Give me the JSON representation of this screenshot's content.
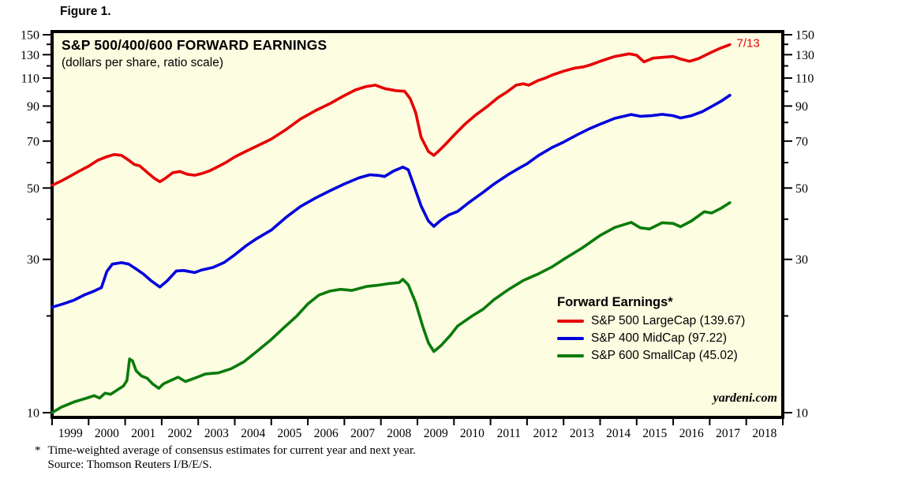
{
  "figure_label": "Figure 1.",
  "chart": {
    "title": "S&P 500/400/600 FORWARD EARNINGS",
    "subtitle": "(dollars per share, ratio scale)",
    "watermark": "yardeni.com",
    "legend": {
      "title": "Forward Earnings*",
      "items": [
        {
          "label": "S&P 500 LargeCap (139.67)",
          "color": "#e60000"
        },
        {
          "label": "S&P 400 MidCap (97.22)",
          "color": "#0000dd"
        },
        {
          "label": "S&P 600 SmallCap (45.02)",
          "color": "#0b7b0b"
        }
      ]
    }
  },
  "colors": {
    "page_bg": "#ffffff",
    "plot_bg": "#fdfde2",
    "frame": "#000000",
    "text": "#000000"
  },
  "footnote": {
    "marker": "*",
    "line1": "Time-weighted average of consensus estimates for current year and next year.",
    "line2": "Source: Thomson Reuters I/B/E/S."
  },
  "chart_data": {
    "type": "line",
    "scale_y": "log",
    "title": "S&P 500/400/600 FORWARD EARNINGS",
    "subtitle": "(dollars per share, ratio scale)",
    "ylabel": "dollars per share (ratio scale)",
    "ylim": [
      10,
      150
    ],
    "x_range": [
      1999,
      2019
    ],
    "yticks_labeled": [
      150,
      130,
      110,
      90,
      70,
      50,
      30,
      10
    ],
    "yticks_minor": [
      140,
      120,
      100,
      80,
      60,
      40,
      20
    ],
    "x_year_labels": [
      1999,
      2000,
      2001,
      2002,
      2003,
      2004,
      2005,
      2006,
      2007,
      2008,
      2009,
      2010,
      2011,
      2012,
      2013,
      2014,
      2015,
      2016,
      2017,
      2018
    ],
    "grid": false,
    "legend_position": "inside-right",
    "annotation": {
      "text": "7/13",
      "year": 2017.65,
      "value": 139.67,
      "color": "#e60000"
    },
    "series": [
      {
        "id": "sp500-largecap",
        "name": "S&P 500 LargeCap",
        "latest": 139.67,
        "color": "#e60000",
        "points": [
          [
            1999.0,
            51.0
          ],
          [
            1999.25,
            52.6
          ],
          [
            1999.5,
            54.5
          ],
          [
            1999.75,
            56.5
          ],
          [
            2000.0,
            58.5
          ],
          [
            2000.25,
            61.0
          ],
          [
            2000.5,
            62.6
          ],
          [
            2000.7,
            63.6
          ],
          [
            2000.9,
            63.2
          ],
          [
            2001.1,
            61.0
          ],
          [
            2001.25,
            59.2
          ],
          [
            2001.4,
            58.6
          ],
          [
            2001.6,
            56.0
          ],
          [
            2001.8,
            53.6
          ],
          [
            2001.95,
            52.3
          ],
          [
            2002.1,
            53.6
          ],
          [
            2002.3,
            55.8
          ],
          [
            2002.5,
            56.3
          ],
          [
            2002.7,
            55.2
          ],
          [
            2002.9,
            54.8
          ],
          [
            2003.1,
            55.5
          ],
          [
            2003.3,
            56.5
          ],
          [
            2003.5,
            58.0
          ],
          [
            2003.75,
            60.0
          ],
          [
            2004.0,
            62.5
          ],
          [
            2004.3,
            65.0
          ],
          [
            2004.6,
            67.5
          ],
          [
            2005.0,
            71.0
          ],
          [
            2005.4,
            76.0
          ],
          [
            2005.8,
            82.0
          ],
          [
            2006.2,
            87.0
          ],
          [
            2006.6,
            91.5
          ],
          [
            2007.0,
            97.0
          ],
          [
            2007.3,
            101.0
          ],
          [
            2007.6,
            103.5
          ],
          [
            2007.85,
            104.5
          ],
          [
            2008.1,
            102.0
          ],
          [
            2008.4,
            100.5
          ],
          [
            2008.65,
            100.0
          ],
          [
            2008.8,
            95.0
          ],
          [
            2008.95,
            86.0
          ],
          [
            2009.1,
            72.0
          ],
          [
            2009.3,
            65.0
          ],
          [
            2009.45,
            63.2
          ],
          [
            2009.6,
            65.5
          ],
          [
            2009.8,
            69.0
          ],
          [
            2010.0,
            73.0
          ],
          [
            2010.3,
            79.0
          ],
          [
            2010.6,
            84.5
          ],
          [
            2010.9,
            89.5
          ],
          [
            2011.2,
            95.5
          ],
          [
            2011.45,
            99.5
          ],
          [
            2011.7,
            104.5
          ],
          [
            2011.9,
            105.5
          ],
          [
            2012.05,
            104.5
          ],
          [
            2012.3,
            108.0
          ],
          [
            2012.5,
            110.0
          ],
          [
            2012.7,
            112.5
          ],
          [
            2013.0,
            115.5
          ],
          [
            2013.3,
            118.0
          ],
          [
            2013.55,
            119.2
          ],
          [
            2013.75,
            121.0
          ],
          [
            2014.0,
            124.0
          ],
          [
            2014.4,
            128.3
          ],
          [
            2014.8,
            130.8
          ],
          [
            2015.0,
            129.5
          ],
          [
            2015.2,
            123.5
          ],
          [
            2015.45,
            126.8
          ],
          [
            2015.7,
            127.5
          ],
          [
            2016.0,
            128.3
          ],
          [
            2016.2,
            126.0
          ],
          [
            2016.45,
            124.0
          ],
          [
            2016.7,
            126.5
          ],
          [
            2017.0,
            131.5
          ],
          [
            2017.3,
            136.3
          ],
          [
            2017.55,
            139.67
          ]
        ]
      },
      {
        "id": "sp400-midcap",
        "name": "S&P 400 MidCap",
        "latest": 97.22,
        "color": "#0000dd",
        "points": [
          [
            1999.0,
            21.3
          ],
          [
            1999.3,
            21.8
          ],
          [
            1999.6,
            22.4
          ],
          [
            1999.9,
            23.3
          ],
          [
            2000.15,
            23.9
          ],
          [
            2000.35,
            24.5
          ],
          [
            2000.5,
            27.5
          ],
          [
            2000.65,
            29.0
          ],
          [
            2000.9,
            29.3
          ],
          [
            2001.1,
            29.0
          ],
          [
            2001.3,
            28.0
          ],
          [
            2001.5,
            27.0
          ],
          [
            2001.7,
            25.8
          ],
          [
            2001.95,
            24.6
          ],
          [
            2002.15,
            25.7
          ],
          [
            2002.4,
            27.6
          ],
          [
            2002.6,
            27.7
          ],
          [
            2002.9,
            27.3
          ],
          [
            2003.1,
            27.8
          ],
          [
            2003.4,
            28.3
          ],
          [
            2003.7,
            29.3
          ],
          [
            2004.0,
            31.0
          ],
          [
            2004.3,
            33.0
          ],
          [
            2004.6,
            34.8
          ],
          [
            2005.0,
            37.0
          ],
          [
            2005.4,
            40.5
          ],
          [
            2005.8,
            43.8
          ],
          [
            2006.2,
            46.5
          ],
          [
            2006.6,
            49.0
          ],
          [
            2007.0,
            51.5
          ],
          [
            2007.4,
            53.8
          ],
          [
            2007.7,
            55.0
          ],
          [
            2007.95,
            54.7
          ],
          [
            2008.1,
            54.3
          ],
          [
            2008.35,
            56.5
          ],
          [
            2008.6,
            58.1
          ],
          [
            2008.75,
            57.0
          ],
          [
            2008.9,
            51.0
          ],
          [
            2009.1,
            44.0
          ],
          [
            2009.3,
            39.5
          ],
          [
            2009.45,
            38.0
          ],
          [
            2009.65,
            39.8
          ],
          [
            2009.85,
            41.2
          ],
          [
            2010.1,
            42.3
          ],
          [
            2010.4,
            45.0
          ],
          [
            2010.8,
            48.5
          ],
          [
            2011.1,
            51.5
          ],
          [
            2011.5,
            55.2
          ],
          [
            2011.8,
            57.8
          ],
          [
            2012.0,
            59.5
          ],
          [
            2012.3,
            63.0
          ],
          [
            2012.7,
            67.0
          ],
          [
            2013.0,
            69.5
          ],
          [
            2013.4,
            73.5
          ],
          [
            2013.7,
            76.4
          ],
          [
            2014.0,
            79.0
          ],
          [
            2014.4,
            82.4
          ],
          [
            2014.85,
            84.7
          ],
          [
            2015.1,
            83.6
          ],
          [
            2015.4,
            84.0
          ],
          [
            2015.7,
            84.8
          ],
          [
            2016.0,
            84.0
          ],
          [
            2016.2,
            82.6
          ],
          [
            2016.5,
            84.0
          ],
          [
            2016.8,
            86.5
          ],
          [
            2017.0,
            89.0
          ],
          [
            2017.3,
            93.0
          ],
          [
            2017.55,
            97.22
          ]
        ]
      },
      {
        "id": "sp600-smallcap",
        "name": "S&P 600 SmallCap",
        "latest": 45.02,
        "color": "#0b7b0b",
        "points": [
          [
            1999.0,
            10.0
          ],
          [
            1999.25,
            10.4
          ],
          [
            1999.6,
            10.8
          ],
          [
            1999.95,
            11.1
          ],
          [
            2000.15,
            11.3
          ],
          [
            2000.3,
            11.1
          ],
          [
            2000.45,
            11.5
          ],
          [
            2000.6,
            11.4
          ],
          [
            2000.8,
            11.8
          ],
          [
            2000.95,
            12.1
          ],
          [
            2001.05,
            12.6
          ],
          [
            2001.12,
            14.7
          ],
          [
            2001.2,
            14.5
          ],
          [
            2001.3,
            13.5
          ],
          [
            2001.45,
            13.0
          ],
          [
            2001.6,
            12.8
          ],
          [
            2001.75,
            12.3
          ],
          [
            2001.92,
            11.9
          ],
          [
            2002.05,
            12.3
          ],
          [
            2002.25,
            12.6
          ],
          [
            2002.45,
            12.9
          ],
          [
            2002.65,
            12.5
          ],
          [
            2002.9,
            12.8
          ],
          [
            2003.2,
            13.2
          ],
          [
            2003.55,
            13.3
          ],
          [
            2003.9,
            13.7
          ],
          [
            2004.25,
            14.4
          ],
          [
            2004.6,
            15.5
          ],
          [
            2005.0,
            16.9
          ],
          [
            2005.35,
            18.4
          ],
          [
            2005.7,
            20.0
          ],
          [
            2006.0,
            21.8
          ],
          [
            2006.3,
            23.2
          ],
          [
            2006.6,
            23.9
          ],
          [
            2006.9,
            24.2
          ],
          [
            2007.2,
            24.0
          ],
          [
            2007.6,
            24.7
          ],
          [
            2007.9,
            24.9
          ],
          [
            2008.2,
            25.2
          ],
          [
            2008.5,
            25.4
          ],
          [
            2008.6,
            26.0
          ],
          [
            2008.75,
            25.0
          ],
          [
            2008.95,
            22.0
          ],
          [
            2009.15,
            18.5
          ],
          [
            2009.3,
            16.5
          ],
          [
            2009.45,
            15.5
          ],
          [
            2009.65,
            16.2
          ],
          [
            2009.9,
            17.4
          ],
          [
            2010.1,
            18.6
          ],
          [
            2010.5,
            20.0
          ],
          [
            2010.8,
            21.0
          ],
          [
            2011.1,
            22.5
          ],
          [
            2011.5,
            24.2
          ],
          [
            2011.9,
            25.8
          ],
          [
            2012.3,
            27.0
          ],
          [
            2012.7,
            28.5
          ],
          [
            2013.0,
            30.0
          ],
          [
            2013.5,
            32.5
          ],
          [
            2014.0,
            35.6
          ],
          [
            2014.4,
            37.7
          ],
          [
            2014.85,
            39.1
          ],
          [
            2015.1,
            37.6
          ],
          [
            2015.35,
            37.3
          ],
          [
            2015.7,
            39.0
          ],
          [
            2016.0,
            38.8
          ],
          [
            2016.2,
            37.9
          ],
          [
            2016.5,
            39.5
          ],
          [
            2016.85,
            42.2
          ],
          [
            2017.05,
            41.8
          ],
          [
            2017.3,
            43.2
          ],
          [
            2017.55,
            45.02
          ]
        ]
      }
    ]
  }
}
